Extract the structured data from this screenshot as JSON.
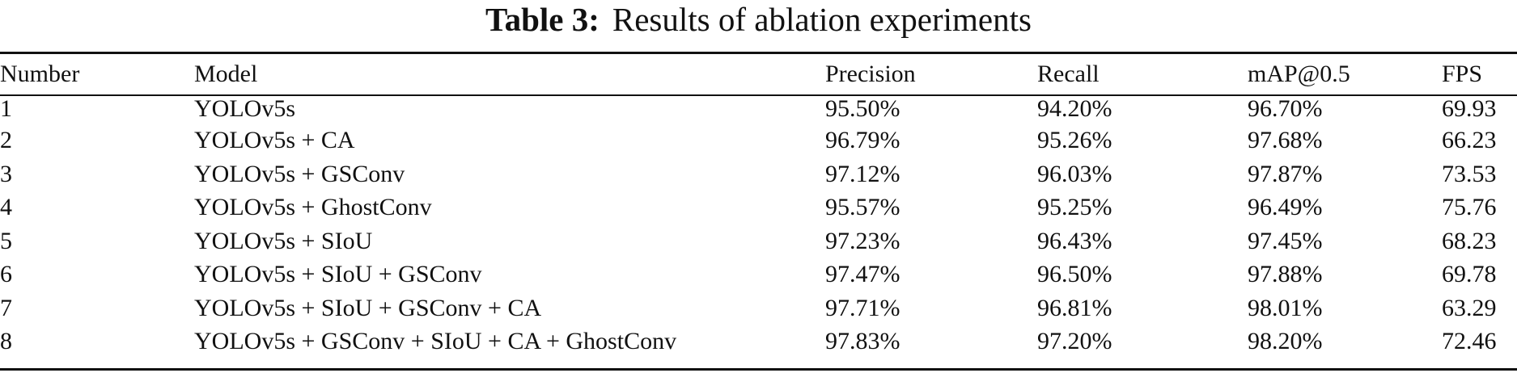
{
  "caption": {
    "label": "Table 3:",
    "text": "Results of ablation experiments"
  },
  "table": {
    "headers": {
      "number": "Number",
      "model": "Model",
      "precision": "Precision",
      "recall": "Recall",
      "map": "mAP@0.5",
      "fps": "FPS"
    },
    "rows": [
      {
        "number": "1",
        "model": "YOLOv5s",
        "precision": "95.50%",
        "recall": "94.20%",
        "map": "96.70%",
        "fps": "69.93"
      },
      {
        "number": "2",
        "model": "YOLOv5s + CA",
        "precision": "96.79%",
        "recall": "95.26%",
        "map": "97.68%",
        "fps": "66.23"
      },
      {
        "number": "3",
        "model": "YOLOv5s + GSConv",
        "precision": "97.12%",
        "recall": "96.03%",
        "map": "97.87%",
        "fps": "73.53"
      },
      {
        "number": "4",
        "model": "YOLOv5s + GhostConv",
        "precision": "95.57%",
        "recall": "95.25%",
        "map": "96.49%",
        "fps": "75.76"
      },
      {
        "number": "5",
        "model": "YOLOv5s + SIoU",
        "precision": "97.23%",
        "recall": "96.43%",
        "map": "97.45%",
        "fps": "68.23"
      },
      {
        "number": "6",
        "model": "YOLOv5s + SIoU + GSConv",
        "precision": "97.47%",
        "recall": "96.50%",
        "map": "97.88%",
        "fps": "69.78"
      },
      {
        "number": "7",
        "model": "YOLOv5s + SIoU + GSConv + CA",
        "precision": "97.71%",
        "recall": "96.81%",
        "map": "98.01%",
        "fps": "63.29"
      },
      {
        "number": "8",
        "model": "YOLOv5s + GSConv + SIoU + CA + GhostConv",
        "precision": "97.83%",
        "recall": "97.20%",
        "map": "98.20%",
        "fps": "72.46"
      }
    ]
  }
}
